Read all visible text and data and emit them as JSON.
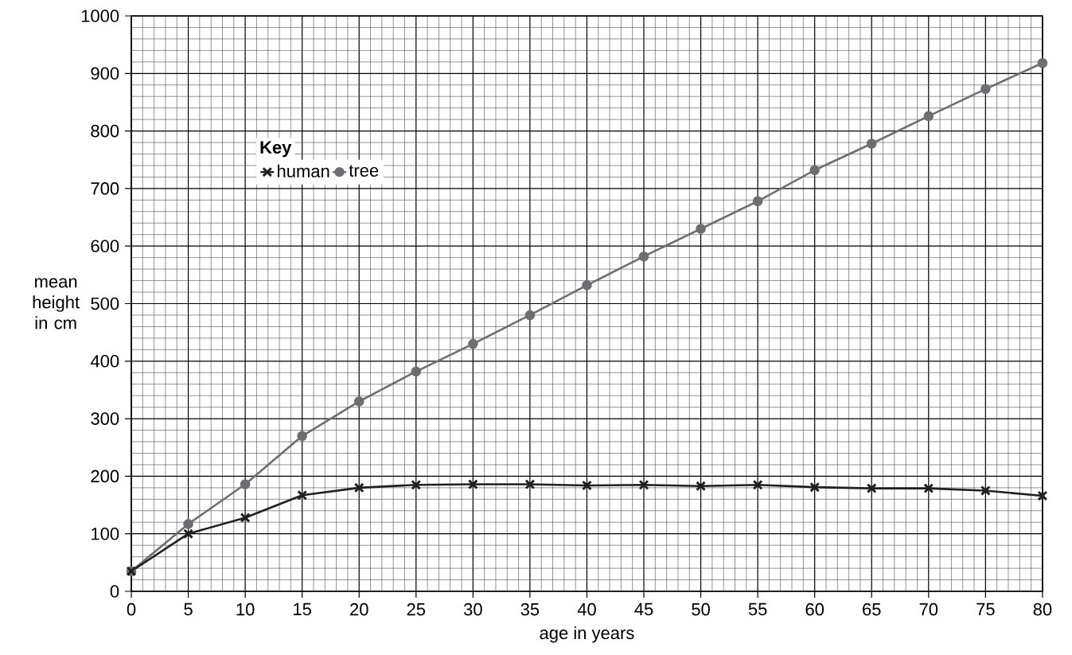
{
  "chart_data": {
    "type": "line",
    "xlabel": "age in years",
    "ylabel": "mean height in cm",
    "legend_title": "Key",
    "x": [
      0,
      5,
      10,
      15,
      20,
      25,
      30,
      35,
      40,
      45,
      50,
      55,
      60,
      65,
      70,
      75,
      80
    ],
    "series": [
      {
        "name": "human",
        "color": "#231f20",
        "marker": "cross",
        "values": [
          35,
          100,
          128,
          167,
          180,
          185,
          186,
          186,
          184,
          185,
          183,
          185,
          181,
          179,
          179,
          175,
          166
        ]
      },
      {
        "name": "tree",
        "color": "#6d6e71",
        "marker": "circle",
        "values": [
          35,
          117,
          186,
          270,
          330,
          382,
          430,
          480,
          532,
          582,
          630,
          678,
          732,
          778,
          826,
          873,
          918
        ]
      }
    ],
    "xlim": [
      0,
      80
    ],
    "ylim": [
      0,
      1000
    ],
    "xticks": [
      0,
      5,
      10,
      15,
      20,
      25,
      30,
      35,
      40,
      45,
      50,
      55,
      60,
      65,
      70,
      75,
      80
    ],
    "yticks": [
      0,
      100,
      200,
      300,
      400,
      500,
      600,
      700,
      800,
      900,
      1000
    ],
    "grid": true,
    "legend": "top left",
    "line_style": "solid"
  }
}
